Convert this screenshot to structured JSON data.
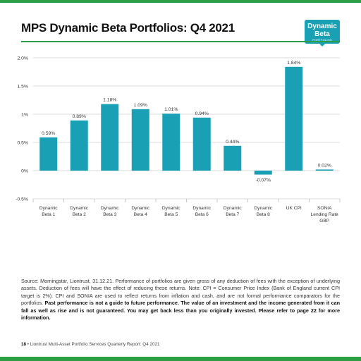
{
  "header": {
    "title": "MPS Dynamic Beta Portfolios: Q4 2021",
    "badge": {
      "line1": "Dynamic",
      "line2": "Beta",
      "line3": "PORTFOLIOS"
    }
  },
  "colors": {
    "accent_green": "#2e9e45",
    "bar": "#1aa0b4",
    "badge": "#1aa0b4"
  },
  "chart_data": {
    "type": "bar",
    "categories": [
      [
        "Dynamic",
        "Beta 1"
      ],
      [
        "Dynamic",
        "Beta 2"
      ],
      [
        "Dynamic",
        "Beta 3"
      ],
      [
        "Dynamic",
        "Beta 4"
      ],
      [
        "Dynamic",
        "Beta 5"
      ],
      [
        "Dynamic",
        "Beta 6"
      ],
      [
        "Dynamic",
        "Beta 7"
      ],
      [
        "Dynamic",
        "Beta 8"
      ],
      [
        "UK CPI"
      ],
      [
        "SONIA",
        "Lending Rate",
        "GBP"
      ]
    ],
    "values": [
      0.59,
      0.89,
      1.18,
      1.09,
      1.01,
      0.94,
      0.44,
      -0.07,
      1.84,
      0.02
    ],
    "value_labels": [
      "0.59%",
      "0.89%",
      "1.18%",
      "1.09%",
      "1.01%",
      "0.94%",
      "0.44%",
      "-0.07%",
      "1.84%",
      "0.02%"
    ],
    "y_ticks": [
      -0.5,
      0,
      0.5,
      1,
      1.5,
      2
    ],
    "y_tick_labels": [
      "-0.5%",
      "0%",
      "0.5%",
      "1%",
      "1.5%",
      "2.0%"
    ],
    "ylim": [
      -0.5,
      2.0
    ],
    "grid": true,
    "title": "",
    "xlabel": "",
    "ylabel": ""
  },
  "footnote": {
    "text": "Source: Morningstar, Liontrust, 31.12.21. Performance of portfolios are given gross of any deduction of fees with the exception of underlying assets. Deduction of fees will have the effect of reducing these returns. Note: CPI = Consumer Price Index (Bank of England current CPI target is 2%). CPI and SONIA are used to reflect returns from inflation and cash, and are not formal performance comparators for the portfolios. ",
    "bold": "Past performance is not a guide to future performance. The value of an investment and the income generated from it can fall as well as rise and is not guaranteed. You may get back less than you originally invested. Please refer to page 22 for more information."
  },
  "footer": {
    "page": "18",
    "text": " • Liontrust Multi-Asset Portfolio Services Quarterly Report: Q4 2021"
  }
}
